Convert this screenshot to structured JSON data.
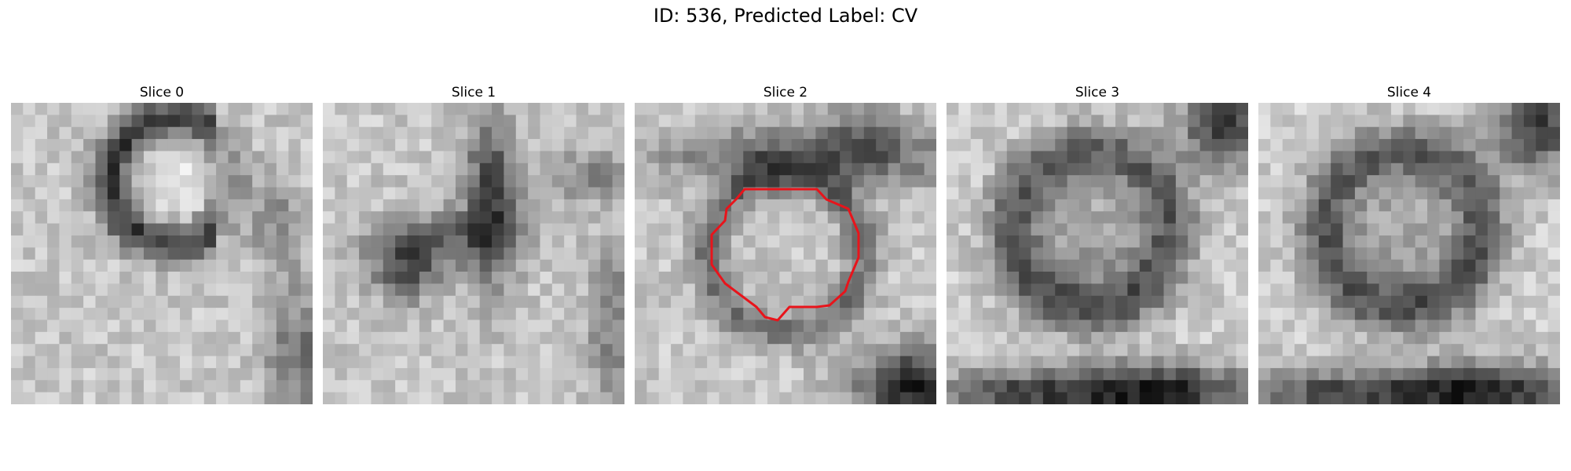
{
  "figure": {
    "title": "ID: 536, Predicted Label: CV"
  },
  "slices": [
    {
      "label": "Slice 0",
      "overlay": false
    },
    {
      "label": "Slice 1",
      "overlay": false
    },
    {
      "label": "Slice 2",
      "overlay": true
    },
    {
      "label": "Slice 3",
      "overlay": false
    },
    {
      "label": "Slice 4",
      "overlay": false
    }
  ],
  "colors": {
    "contour": "#e8141b",
    "background": "#ffffff"
  }
}
